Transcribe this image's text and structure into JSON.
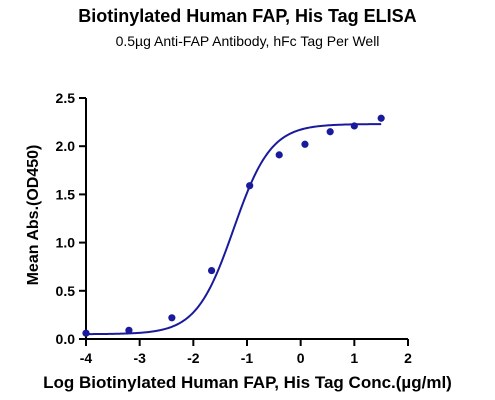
{
  "chart_data": {
    "type": "scatter",
    "title": "Biotinylated Human FAP, His Tag ELISA",
    "subtitle": "0.5µg Anti-FAP Antibody, hFc Tag Per Well",
    "xlabel": "Log Biotinylated Human FAP, His Tag Conc.(µg/ml)",
    "ylabel": "Mean Abs.(OD450)",
    "xlim": [
      -4,
      2
    ],
    "ylim": [
      0,
      2.5
    ],
    "xticks": [
      "-4",
      "-3",
      "-2",
      "-1",
      "0",
      "1",
      "2"
    ],
    "yticks": [
      "0.0",
      "0.5",
      "1.0",
      "1.5",
      "2.0",
      "2.5"
    ],
    "series": [
      {
        "points": [
          {
            "x": -4.0,
            "y": 0.06
          },
          {
            "x": -3.2,
            "y": 0.09
          },
          {
            "x": -2.4,
            "y": 0.22
          },
          {
            "x": -1.66,
            "y": 0.71
          },
          {
            "x": -0.95,
            "y": 1.59
          },
          {
            "x": -0.4,
            "y": 1.91
          },
          {
            "x": 0.08,
            "y": 2.02
          },
          {
            "x": 0.55,
            "y": 2.15
          },
          {
            "x": 1.0,
            "y": 2.21
          },
          {
            "x": 1.5,
            "y": 2.29
          }
        ],
        "fit": {
          "model": "4PL",
          "bottom": 0.05,
          "top": 2.23,
          "logEC50": -1.25,
          "hillslope": 1.25
        },
        "color": "#1a1a9c"
      }
    ],
    "grid": false,
    "legend": "none"
  }
}
